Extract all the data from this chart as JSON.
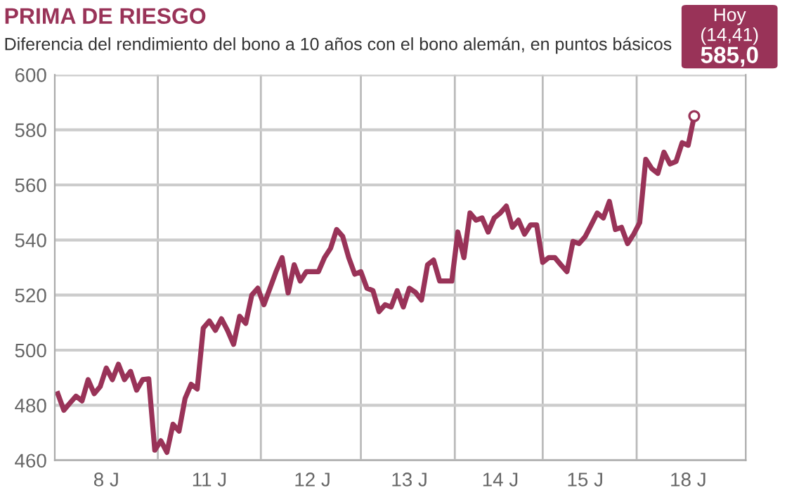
{
  "chart_data": {
    "type": "line",
    "title": "PRIMA DE RIESGO",
    "subtitle": "Diferencia del rendimiento del bono a 10 años con el bono alemán, en puntos básicos",
    "categories": [
      null,
      null,
      null,
      null,
      null,
      null,
      null,
      null,
      "8 J",
      null,
      null,
      null,
      null,
      null,
      null,
      null,
      null,
      null,
      null,
      null,
      null,
      null,
      null,
      null,
      null,
      "11 J",
      null,
      null,
      null,
      null,
      null,
      null,
      null,
      null,
      null,
      null,
      null,
      null,
      null,
      null,
      null,
      null,
      "12 J",
      null,
      null,
      null,
      null,
      null,
      null,
      null,
      null,
      null,
      null,
      null,
      null,
      null,
      null,
      null,
      "13 J",
      null,
      null,
      null,
      null,
      null,
      null,
      null,
      null,
      null,
      null,
      null,
      null,
      null,
      null,
      "14 J",
      null,
      null,
      null,
      null,
      null,
      null,
      null,
      null,
      null,
      null,
      null,
      null,
      null,
      "15 J",
      null,
      null,
      null,
      null,
      null,
      null,
      null,
      null,
      null,
      null,
      null,
      null,
      null,
      null,
      null,
      null,
      "18 J",
      null,
      null,
      null,
      null,
      null,
      null,
      null,
      null,
      null
    ],
    "series": [
      {
        "color": "#993358",
        "values": [
          484.2,
          478.2,
          480.8,
          483.3,
          481.6,
          489.3,
          484.2,
          486.8,
          493.5,
          489.3,
          494.9,
          489.3,
          492.3,
          485.5,
          489.3,
          489.6,
          463.7,
          467.1,
          462.9,
          473.1,
          470.6,
          482.5,
          487.6,
          485.9,
          508.0,
          510.6,
          507.2,
          511.4,
          507.2,
          502.1,
          512.3,
          509.7,
          520.0,
          522.5,
          516.5,
          522.5,
          528.5,
          533.6,
          520.8,
          531.0,
          525.1,
          528.5,
          528.5,
          528.5,
          533.6,
          537.0,
          543.8,
          541.3,
          533.6,
          527.6,
          528.5,
          522.5,
          521.6,
          514.0,
          516.5,
          515.7,
          521.6,
          515.7,
          522.5,
          521.0,
          518.2,
          531.0,
          532.7,
          525.1,
          525.1,
          525.1,
          542.9,
          533.6,
          549.8,
          547.2,
          548.0,
          542.9,
          548.0,
          549.8,
          552.3,
          544.6,
          547.2,
          542.1,
          545.5,
          545.5,
          531.9,
          533.6,
          533.6,
          531.0,
          528.5,
          539.5,
          538.7,
          541.2,
          545.5,
          549.8,
          548.0,
          554.0,
          543.8,
          544.6,
          538.7,
          542.1,
          546.3,
          569.3,
          565.9,
          564.2,
          571.9,
          567.6,
          568.5,
          575.3,
          574.4,
          585.0,
          null,
          null,
          null,
          null,
          null,
          null,
          null,
          null
        ]
      }
    ],
    "ylim": [
      460,
      600
    ],
    "yticks": [
      460,
      480,
      500,
      520,
      540,
      560,
      580,
      600
    ],
    "grid": "y",
    "annotations": [
      "Hoy",
      "(14,41)",
      "585,0"
    ],
    "legend": false,
    "marker": "none",
    "line_style": "solid"
  }
}
